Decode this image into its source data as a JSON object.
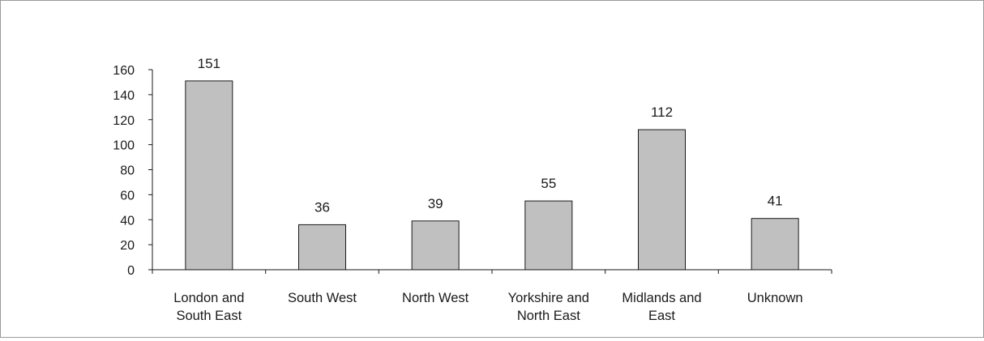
{
  "chart_data": {
    "type": "bar",
    "title": "",
    "xlabel": "",
    "ylabel": "",
    "ylim": [
      0,
      160
    ],
    "yticks": [
      0,
      20,
      40,
      60,
      80,
      100,
      120,
      140,
      160
    ],
    "grid": false,
    "legend": "none",
    "categories": [
      [
        "London and",
        "South East"
      ],
      [
        "South West"
      ],
      [
        "North West"
      ],
      [
        "Yorkshire and",
        "North East"
      ],
      [
        "Midlands and",
        "East"
      ],
      [
        "Unknown"
      ]
    ],
    "values": [
      151,
      36,
      39,
      55,
      112,
      41
    ],
    "bar_color": "#c0c0c0",
    "bar_border_color": "#1a1a1a",
    "axis_color": "#1a1a1a"
  }
}
